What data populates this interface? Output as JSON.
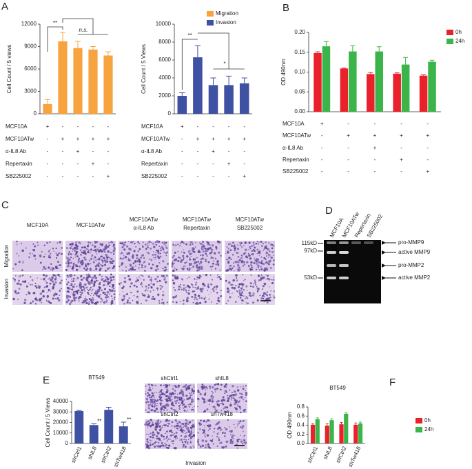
{
  "panel_labels": [
    "A",
    "B",
    "C",
    "D",
    "E",
    "F"
  ],
  "chart_data": [
    {
      "type": "bar",
      "ylabel": "Cell Count / 5 views",
      "ylim": [
        0,
        12000
      ],
      "yticks": [
        0,
        3000,
        6000,
        9000,
        12000
      ],
      "series": [
        {
          "name": "Migration",
          "color": "#f7a440",
          "values": [
            1300,
            9700,
            8800,
            8600,
            7800
          ],
          "errors": [
            600,
            1200,
            900,
            400,
            500
          ]
        }
      ],
      "annotations": [
        "**",
        "n.s."
      ],
      "treatments": [
        {
          "label": "MCF10A",
          "marks": [
            "+",
            "-",
            "-",
            "-",
            "-"
          ]
        },
        {
          "label": "MCF10ATw",
          "marks": [
            "-",
            "+",
            "+",
            "+",
            "+"
          ]
        },
        {
          "label": "α-IL8 Ab",
          "marks": [
            "-",
            "-",
            "+",
            "-",
            "-"
          ]
        },
        {
          "label": "Repertaxin",
          "marks": [
            "-",
            "-",
            "-",
            "+",
            "-"
          ]
        },
        {
          "label": "SB225002",
          "marks": [
            "-",
            "-",
            "-",
            "-",
            "+"
          ]
        }
      ]
    },
    {
      "type": "bar",
      "ylabel": "Cell Count / 5 Views",
      "ylim": [
        0,
        10000
      ],
      "yticks": [
        0,
        2000,
        4000,
        6000,
        8000,
        10000
      ],
      "series": [
        {
          "name": "Invasion",
          "color": "#3f51a3",
          "values": [
            2000,
            6300,
            3200,
            3200,
            3400
          ],
          "errors": [
            350,
            1300,
            800,
            1000,
            600
          ]
        }
      ],
      "annotations": [
        "**",
        "*"
      ],
      "legend": "top-right",
      "treatments": [
        {
          "label": "MCF10A",
          "marks": [
            "+",
            "-",
            "-",
            "-",
            "-"
          ]
        },
        {
          "label": "MCF10ATw",
          "marks": [
            "-",
            "+",
            "+",
            "+",
            "+"
          ]
        },
        {
          "label": "α-IL8 Ab",
          "marks": [
            "-",
            "-",
            "+",
            "-",
            "-"
          ]
        },
        {
          "label": "Repertaxin",
          "marks": [
            "-",
            "-",
            "-",
            "+",
            "-"
          ]
        },
        {
          "label": "SB225002",
          "marks": [
            "-",
            "-",
            "-",
            "-",
            "+"
          ]
        }
      ]
    },
    {
      "type": "bar",
      "ylabel": "OD 490nm",
      "ylim": [
        0,
        0.2
      ],
      "yticks": [
        {
          "value": 0,
          "label": "0.00"
        },
        0.05,
        {
          "value": 0.1,
          "label": "0.10"
        },
        0.15,
        {
          "value": 0.2,
          "label": "0.20"
        }
      ],
      "series": [
        {
          "name": "0h",
          "color": "#e8212b",
          "values": [
            0.148,
            0.109,
            0.095,
            0.096,
            0.091
          ],
          "errors": [
            0.003,
            0.001,
            0.004,
            0.002,
            0.002
          ]
        },
        {
          "name": "24h",
          "color": "#3bb54a",
          "values": [
            0.165,
            0.152,
            0.152,
            0.119,
            0.126
          ],
          "errors": [
            0.012,
            0.014,
            0.012,
            0.018,
            0.004
          ]
        }
      ],
      "legend": "top-right",
      "treatments": [
        {
          "label": "MCF10A",
          "marks": [
            "+",
            "-",
            "-",
            "-",
            "-"
          ]
        },
        {
          "label": "MCF10ATw",
          "marks": [
            "-",
            "+",
            "+",
            "+",
            "+"
          ]
        },
        {
          "label": "α-IL8 Ab",
          "marks": [
            "-",
            "-",
            "+",
            "-",
            "-"
          ]
        },
        {
          "label": "Repertaxin",
          "marks": [
            "-",
            "-",
            "-",
            "+",
            "-"
          ]
        },
        {
          "label": "SB225002",
          "marks": [
            "-",
            "-",
            "-",
            "-",
            "+"
          ]
        }
      ]
    },
    {
      "type": "bar",
      "title": "BT549",
      "ylabel": "Cell Count / 5 Views",
      "categories": [
        "shCtrl1",
        "shIL8",
        "shCtrl2",
        "shTw418"
      ],
      "ylim": [
        0,
        40000
      ],
      "yticks": [
        0,
        10000,
        20000,
        30000,
        40000
      ],
      "series": [
        {
          "color": "#3f51a3",
          "values": [
            30800,
            17500,
            32000,
            16300
          ],
          "errors": [
            600,
            1200,
            2400,
            4000
          ]
        }
      ],
      "annotations": [
        "**",
        "**"
      ]
    },
    {
      "type": "bar",
      "title": "BT549",
      "ylabel": "OD 490nm",
      "categories": [
        "shCtrl1",
        "shIL8",
        "shCtrl2",
        "shTw418"
      ],
      "ylim": [
        0,
        0.8
      ],
      "yticks": [
        {
          "value": 0,
          "label": "0.0"
        },
        0.2,
        0.4,
        0.6,
        0.8
      ],
      "series": [
        {
          "name": "0h",
          "color": "#e8212b",
          "values": [
            0.41,
            0.39,
            0.42,
            0.41
          ],
          "errors": [
            0.02,
            0.04,
            0.04,
            0.04
          ]
        },
        {
          "name": "24h",
          "color": "#3bb54a",
          "values": [
            0.53,
            0.51,
            0.65,
            0.44
          ],
          "errors": [
            0.03,
            0.03,
            0.02,
            0.03
          ]
        }
      ],
      "legend": "top-right"
    }
  ],
  "micrographs": {
    "columns": [
      {
        "lines": [
          "MCF10A"
        ]
      },
      {
        "lines": [
          "MCF10ATw"
        ]
      },
      {
        "lines": [
          "MCF10ATw",
          "α-IL8 Ab"
        ]
      },
      {
        "lines": [
          "MCF10ATw",
          "Repertaxin"
        ]
      },
      {
        "lines": [
          "MCF10ATw",
          "SB225002"
        ]
      }
    ],
    "rows": [
      "Migration",
      "Invasion"
    ]
  },
  "zymogram": {
    "lanes": [
      "MCF10A",
      "MCF10ATw",
      "Repertaxin",
      "SB225002"
    ],
    "markers": [
      "115kD",
      "97kD",
      "53kD"
    ],
    "bands": [
      "pro-MMP9",
      "active MMP9",
      "pro-MMP2",
      "active MMP2"
    ]
  },
  "knockdown_images": {
    "labels": [
      "shCtrl1",
      "shIL8",
      "shCtrl2",
      "shTw418"
    ],
    "caption": "Invasion"
  }
}
